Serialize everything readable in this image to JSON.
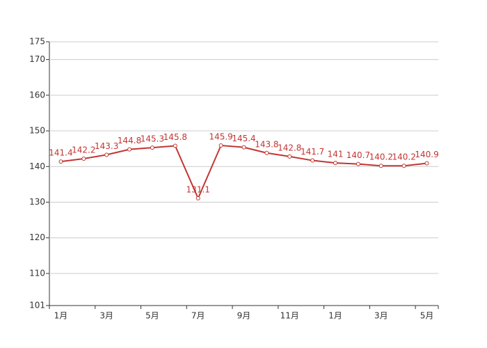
{
  "chart_data": {
    "type": "line",
    "categories": [
      "1月",
      null,
      "3月",
      null,
      "5月",
      null,
      "7月",
      null,
      "9月",
      null,
      "11月",
      null,
      "1月",
      null,
      "3月",
      null,
      "5月"
    ],
    "values": [
      141.4,
      142.2,
      143.3,
      144.8,
      145.3,
      145.8,
      131.1,
      145.9,
      145.4,
      143.8,
      142.8,
      141.7,
      141,
      140.7,
      140.2,
      140.2,
      140.9
    ],
    "color": "#c23531",
    "ylim": [
      101,
      175
    ],
    "yticks": [
      101,
      110,
      120,
      130,
      140,
      150,
      160,
      170,
      175
    ],
    "grid": true
  }
}
